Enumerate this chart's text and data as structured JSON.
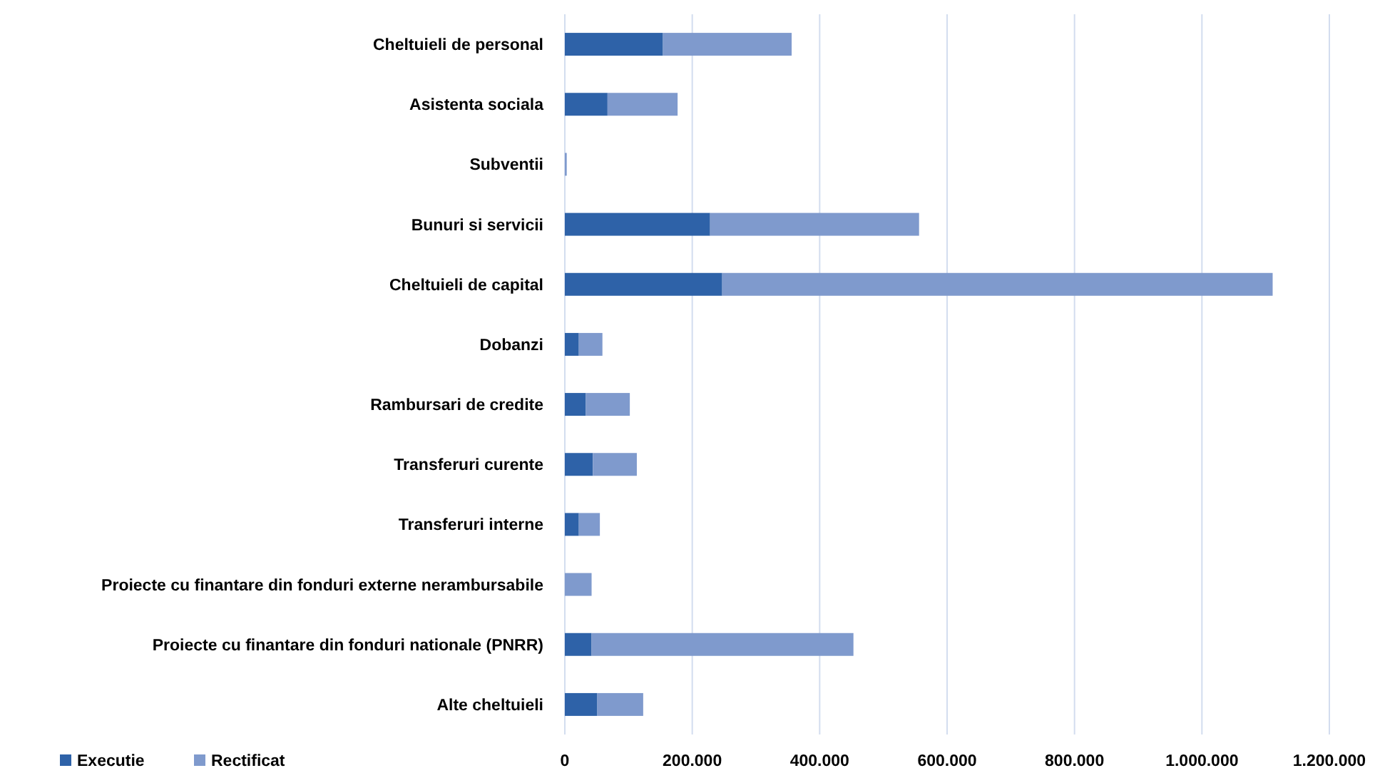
{
  "chart_data": {
    "type": "bar",
    "orientation": "horizontal",
    "stacked": true,
    "categories": [
      "Cheltuieli de personal",
      "Asistenta sociala",
      "Subventii",
      "Bunuri si servicii",
      "Cheltuieli de capital",
      "Dobanzi",
      "Rambursari de credite",
      "Transferuri curente",
      "Transferuri interne",
      "Proiecte cu finantare din fonduri externe nerambursabile",
      "Proiecte cu finantare din fonduri nationale (PNRR)",
      "Alte cheltuieli"
    ],
    "series": [
      {
        "name": "Executie",
        "color": "#2e62a8",
        "values": [
          154000,
          67000,
          0,
          228000,
          247000,
          22000,
          33000,
          44000,
          22000,
          0,
          42000,
          51000
        ]
      },
      {
        "name": "Rectificat",
        "color": "#7f9acd",
        "values": [
          202000,
          110000,
          3000,
          328000,
          864000,
          37000,
          69000,
          69000,
          33000,
          42000,
          411000,
          72000
        ]
      }
    ],
    "xlim": [
      0,
      1200000
    ],
    "xticks": [
      0,
      {
        "value": 200000,
        "label": "200.000"
      },
      {
        "value": 400000,
        "label": "400.000"
      },
      {
        "value": 600000,
        "label": "600.000"
      },
      {
        "value": 800000,
        "label": "800.000"
      },
      {
        "value": 1000000,
        "label": "1.000.000"
      },
      {
        "value": 1200000,
        "label": "1.200.000"
      }
    ],
    "grid": "x",
    "legend": "bottom left"
  }
}
